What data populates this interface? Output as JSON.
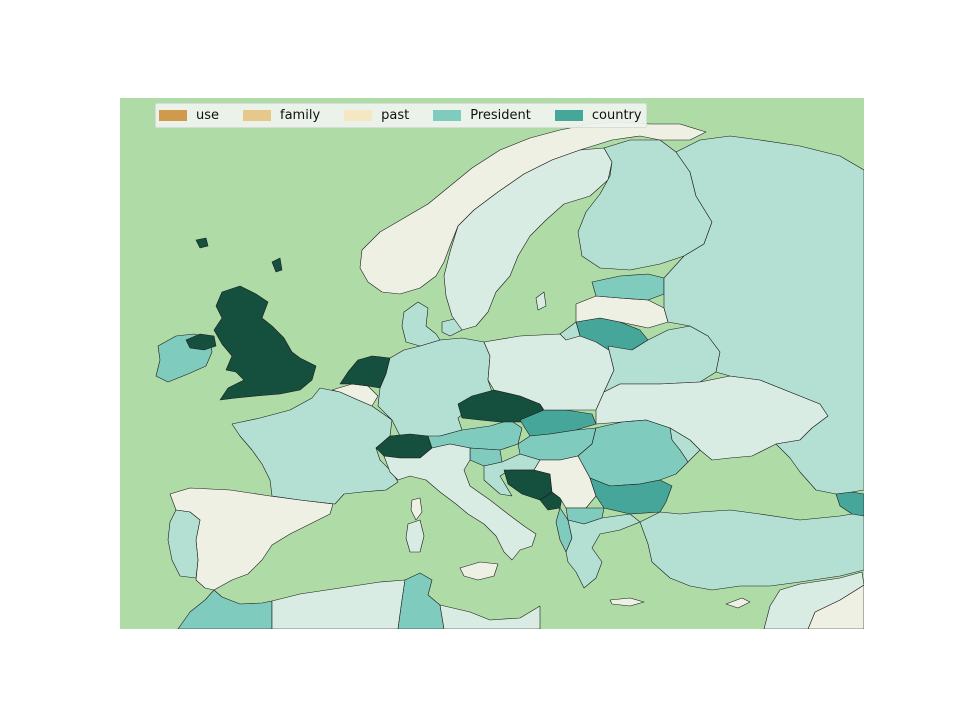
{
  "map": {
    "ocean_color": "#afdba7",
    "border_color": "#1b1b1b",
    "legend": [
      {
        "label": "use",
        "color": "#cf9a4b"
      },
      {
        "label": "family",
        "color": "#e5c88a"
      },
      {
        "label": "past",
        "color": "#f6e7c4"
      },
      {
        "label": "President",
        "color": "#7fcbbd"
      },
      {
        "label": "country",
        "color": "#47a69a"
      }
    ],
    "region_colors": {
      "norway": "#eef0e4",
      "sweden": "#d9ece3",
      "finland": "#b3e0d3",
      "russia": "#b3e0d3",
      "estonia": "#7fcbbd",
      "latvia": "#eef0e4",
      "lithuania": "#47a69a",
      "belarus": "#b3e0d3",
      "poland": "#d9ece3",
      "ukraine": "#d9ece3",
      "germany": "#b3e0d3",
      "denmark": "#b3e0d3",
      "netherlands": "#15503f",
      "belgium": "#eef0e4",
      "uk": "#15503f",
      "ireland": "#7fcbbd",
      "france": "#b3e0d3",
      "spain": "#eef0e4",
      "portugal": "#b3e0d3",
      "switzerland": "#15503f",
      "austria": "#7fcbbd",
      "czechia": "#15503f",
      "slovakia": "#47a69a",
      "hungary": "#7fcbbd",
      "romania": "#7fcbbd",
      "moldova": "#b3e0d3",
      "bulgaria": "#47a69a",
      "serbia": "#eef0e4",
      "bosnia": "#15503f",
      "montenegro": "#15503f",
      "croatia": "#b3e0d3",
      "slovenia": "#7fcbbd",
      "italy": "#d9ece3",
      "sardinia": "#d9ece3",
      "corsica": "#eef0e4",
      "sicily": "#eef0e4",
      "greece": "#b3e0d3",
      "albania": "#7fcbbd",
      "macedonia": "#7fcbbd",
      "turkey": "#b3e0d3",
      "algeria": "#d9ece3",
      "morocco": "#7fcbbd",
      "tunisia": "#7fcbbd",
      "libya": "#d9ece3",
      "egypt": "#eef0e4",
      "georgia": "#47a69a",
      "crete": "#eef0e4",
      "cyprus": "#eef0e4"
    }
  }
}
